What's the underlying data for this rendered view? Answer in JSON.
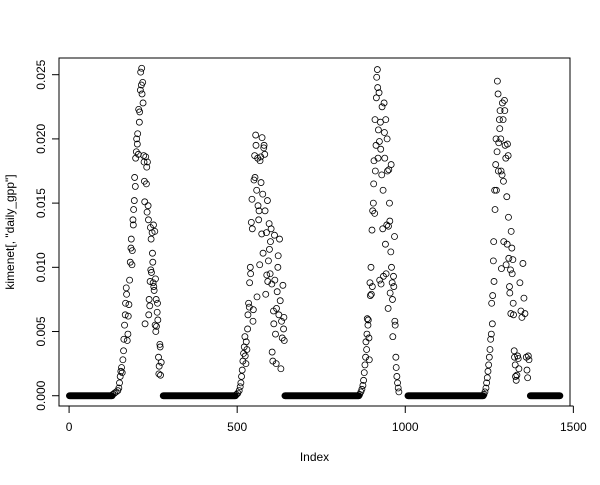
{
  "chart_data": {
    "type": "scatter",
    "title": "",
    "xlabel": "Index",
    "ylabel": "kimenet[, \"daily_gpp\"]",
    "xlim": [
      -30,
      1490
    ],
    "ylim": [
      -0.0008,
      0.0263
    ],
    "xticks": [
      0,
      500,
      1000,
      1500
    ],
    "xtick_labels": [
      "0",
      "500",
      "1000",
      "1500"
    ],
    "yticks": [
      0,
      0.005,
      0.01,
      0.015,
      0.02,
      0.025
    ],
    "ytick_labels": [
      "0.000",
      "0.005",
      "0.010",
      "0.015",
      "0.020",
      "0.025"
    ],
    "grid": false,
    "marker": "open-circle",
    "marker_color": "#000000",
    "zero_ranges": [
      [
        1,
        128
      ],
      [
        280,
        495
      ],
      [
        642,
        862
      ],
      [
        1008,
        1232
      ],
      [
        1372,
        1460
      ]
    ],
    "points": [
      [
        130,
        0.0001
      ],
      [
        135,
        0.0002
      ],
      [
        140,
        0.0003
      ],
      [
        145,
        0.0004
      ],
      [
        148,
        0.0006
      ],
      [
        150,
        0.001
      ],
      [
        152,
        0.0015
      ],
      [
        154,
        0.0019
      ],
      [
        156,
        0.0022
      ],
      [
        158,
        0.0018
      ],
      [
        160,
        0.0028
      ],
      [
        162,
        0.0035
      ],
      [
        163,
        0.0044
      ],
      [
        165,
        0.0055
      ],
      [
        167,
        0.0063
      ],
      [
        168,
        0.0072
      ],
      [
        170,
        0.0084
      ],
      [
        171,
        0.0079
      ],
      [
        173,
        0.0043
      ],
      [
        175,
        0.0048
      ],
      [
        176,
        0.0062
      ],
      [
        178,
        0.0071
      ],
      [
        180,
        0.009
      ],
      [
        182,
        0.0104
      ],
      [
        184,
        0.0115
      ],
      [
        185,
        0.0122
      ],
      [
        187,
        0.0102
      ],
      [
        188,
        0.0113
      ],
      [
        190,
        0.0137
      ],
      [
        191,
        0.0133
      ],
      [
        192,
        0.0145
      ],
      [
        194,
        0.0152
      ],
      [
        195,
        0.017
      ],
      [
        197,
        0.0163
      ],
      [
        198,
        0.0185
      ],
      [
        200,
        0.019
      ],
      [
        201,
        0.02
      ],
      [
        203,
        0.0196
      ],
      [
        204,
        0.0204
      ],
      [
        206,
        0.0188
      ],
      [
        207,
        0.0223
      ],
      [
        209,
        0.0213
      ],
      [
        210,
        0.0221
      ],
      [
        212,
        0.0238
      ],
      [
        213,
        0.0252
      ],
      [
        215,
        0.0242
      ],
      [
        216,
        0.0255
      ],
      [
        217,
        0.0235
      ],
      [
        219,
        0.0244
      ],
      [
        220,
        0.0228
      ],
      [
        222,
        0.0187
      ],
      [
        223,
        0.0182
      ],
      [
        224,
        0.0167
      ],
      [
        225,
        0.0151
      ],
      [
        226,
        0.0056
      ],
      [
        228,
        0.0186
      ],
      [
        230,
        0.0165
      ],
      [
        231,
        0.0178
      ],
      [
        232,
        0.0143
      ],
      [
        233,
        0.0182
      ],
      [
        235,
        0.0148
      ],
      [
        236,
        0.0137
      ],
      [
        237,
        0.0063
      ],
      [
        238,
        0.0075
      ],
      [
        240,
        0.007
      ],
      [
        241,
        0.0089
      ],
      [
        242,
        0.0131
      ],
      [
        243,
        0.0098
      ],
      [
        244,
        0.0122
      ],
      [
        245,
        0.0096
      ],
      [
        247,
        0.0127
      ],
      [
        248,
        0.0111
      ],
      [
        249,
        0.0104
      ],
      [
        250,
        0.0088
      ],
      [
        251,
        0.0133
      ],
      [
        252,
        0.0085
      ],
      [
        253,
        0.0082
      ],
      [
        255,
        0.0128
      ],
      [
        256,
        0.0055
      ],
      [
        257,
        0.0091
      ],
      [
        258,
        0.005
      ],
      [
        259,
        0.0075
      ],
      [
        260,
        0.0054
      ],
      [
        262,
        0.0065
      ],
      [
        263,
        0.0072
      ],
      [
        264,
        0.0059
      ],
      [
        266,
        0.003
      ],
      [
        267,
        0.0017
      ],
      [
        268,
        0.0023
      ],
      [
        270,
        0.004
      ],
      [
        271,
        0.0038
      ],
      [
        272,
        0.0016
      ],
      [
        274,
        0.0026
      ],
      [
        498,
        0.0001
      ],
      [
        502,
        0.0002
      ],
      [
        506,
        0.0004
      ],
      [
        509,
        0.0007
      ],
      [
        511,
        0.001
      ],
      [
        513,
        0.0015
      ],
      [
        515,
        0.002
      ],
      [
        517,
        0.0027
      ],
      [
        519,
        0.0033
      ],
      [
        521,
        0.0038
      ],
      [
        523,
        0.0046
      ],
      [
        524,
        0.0031
      ],
      [
        526,
        0.0025
      ],
      [
        527,
        0.0042
      ],
      [
        529,
        0.0036
      ],
      [
        531,
        0.0052
      ],
      [
        532,
        0.0063
      ],
      [
        534,
        0.0072
      ],
      [
        536,
        0.0069
      ],
      [
        537,
        0.0088
      ],
      [
        539,
        0.01
      ],
      [
        540,
        0.0095
      ],
      [
        542,
        0.0135
      ],
      [
        544,
        0.0153
      ],
      [
        545,
        0.013
      ],
      [
        547,
        0.0058
      ],
      [
        548,
        0.0067
      ],
      [
        550,
        0.0168
      ],
      [
        552,
        0.0187
      ],
      [
        553,
        0.017
      ],
      [
        555,
        0.0203
      ],
      [
        556,
        0.0195
      ],
      [
        558,
        0.016
      ],
      [
        559,
        0.0077
      ],
      [
        561,
        0.0185
      ],
      [
        562,
        0.0148
      ],
      [
        564,
        0.0137
      ],
      [
        565,
        0.0144
      ],
      [
        567,
        0.0102
      ],
      [
        568,
        0.0183
      ],
      [
        570,
        0.0186
      ],
      [
        571,
        0.0166
      ],
      [
        573,
        0.0126
      ],
      [
        574,
        0.0201
      ],
      [
        576,
        0.0157
      ],
      [
        577,
        0.0111
      ],
      [
        579,
        0.0193
      ],
      [
        580,
        0.0195
      ],
      [
        582,
        0.0188
      ],
      [
        583,
        0.0144
      ],
      [
        585,
        0.0079
      ],
      [
        587,
        0.0127
      ],
      [
        588,
        0.0094
      ],
      [
        590,
        0.0152
      ],
      [
        591,
        0.0089
      ],
      [
        593,
        0.0105
      ],
      [
        595,
        0.0134
      ],
      [
        596,
        0.0114
      ],
      [
        598,
        0.0095
      ],
      [
        599,
        0.012
      ],
      [
        601,
        0.013
      ],
      [
        603,
        0.0087
      ],
      [
        604,
        0.0034
      ],
      [
        606,
        0.0027
      ],
      [
        608,
        0.0066
      ],
      [
        609,
        0.0056
      ],
      [
        611,
        0.0125
      ],
      [
        612,
        0.009
      ],
      [
        614,
        0.0048
      ],
      [
        616,
        0.0025
      ],
      [
        617,
        0.0068
      ],
      [
        619,
        0.0081
      ],
      [
        621,
        0.01
      ],
      [
        622,
        0.0109
      ],
      [
        624,
        0.0063
      ],
      [
        626,
        0.0122
      ],
      [
        628,
        0.0074
      ],
      [
        630,
        0.0021
      ],
      [
        632,
        0.0058
      ],
      [
        634,
        0.0045
      ],
      [
        636,
        0.0086
      ],
      [
        638,
        0.0052
      ],
      [
        639,
        0.0061
      ],
      [
        640,
        0.0043
      ],
      [
        864,
        0.0001
      ],
      [
        868,
        0.0003
      ],
      [
        871,
        0.0005
      ],
      [
        874,
        0.0008
      ],
      [
        876,
        0.0012
      ],
      [
        878,
        0.0018
      ],
      [
        880,
        0.0024
      ],
      [
        882,
        0.003
      ],
      [
        883,
        0.0042
      ],
      [
        885,
        0.0036
      ],
      [
        886,
        0.0048
      ],
      [
        887,
        0.006
      ],
      [
        889,
        0.0055
      ],
      [
        890,
        0.0059
      ],
      [
        892,
        0.0045
      ],
      [
        893,
        0.0028
      ],
      [
        895,
        0.0088
      ],
      [
        896,
        0.0078
      ],
      [
        898,
        0.01
      ],
      [
        899,
        0.0079
      ],
      [
        901,
        0.0129
      ],
      [
        902,
        0.0085
      ],
      [
        903,
        0.0144
      ],
      [
        905,
        0.015
      ],
      [
        906,
        0.0165
      ],
      [
        907,
        0.0183
      ],
      [
        909,
        0.0142
      ],
      [
        910,
        0.0215
      ],
      [
        911,
        0.0175
      ],
      [
        913,
        0.0195
      ],
      [
        914,
        0.0232
      ],
      [
        915,
        0.0248
      ],
      [
        917,
        0.0254
      ],
      [
        918,
        0.024
      ],
      [
        919,
        0.0185
      ],
      [
        920,
        0.0207
      ],
      [
        922,
        0.0236
      ],
      [
        923,
        0.0198
      ],
      [
        924,
        0.009
      ],
      [
        926,
        0.0213
      ],
      [
        927,
        0.0192
      ],
      [
        928,
        0.0087
      ],
      [
        930,
        0.0172
      ],
      [
        931,
        0.0225
      ],
      [
        933,
        0.013
      ],
      [
        934,
        0.016
      ],
      [
        935,
        0.0093
      ],
      [
        937,
        0.0228
      ],
      [
        938,
        0.0205
      ],
      [
        939,
        0.0185
      ],
      [
        941,
        0.0118
      ],
      [
        942,
        0.0215
      ],
      [
        943,
        0.0095
      ],
      [
        945,
        0.0133
      ],
      [
        946,
        0.02
      ],
      [
        947,
        0.0175
      ],
      [
        949,
        0.0068
      ],
      [
        950,
        0.0132
      ],
      [
        951,
        0.0176
      ],
      [
        953,
        0.015
      ],
      [
        954,
        0.0136
      ],
      [
        955,
        0.008
      ],
      [
        957,
        0.0112
      ],
      [
        958,
        0.018
      ],
      [
        959,
        0.01
      ],
      [
        961,
        0.0088
      ],
      [
        962,
        0.0075
      ],
      [
        963,
        0.0046
      ],
      [
        965,
        0.0093
      ],
      [
        966,
        0.0085
      ],
      [
        968,
        0.0124
      ],
      [
        969,
        0.0058
      ],
      [
        970,
        0.0055
      ],
      [
        972,
        0.003
      ],
      [
        973,
        0.0022
      ],
      [
        975,
        0.0015
      ],
      [
        977,
        0.001
      ],
      [
        979,
        0.0006
      ],
      [
        981,
        0.0003
      ],
      [
        1234,
        0.0001
      ],
      [
        1237,
        0.0003
      ],
      [
        1240,
        0.0006
      ],
      [
        1242,
        0.001
      ],
      [
        1244,
        0.0014
      ],
      [
        1246,
        0.0019
      ],
      [
        1248,
        0.0024
      ],
      [
        1250,
        0.003
      ],
      [
        1252,
        0.0036
      ],
      [
        1254,
        0.0044
      ],
      [
        1256,
        0.0048
      ],
      [
        1257,
        0.0072
      ],
      [
        1259,
        0.0056
      ],
      [
        1260,
        0.0078
      ],
      [
        1262,
        0.0105
      ],
      [
        1263,
        0.012
      ],
      [
        1264,
        0.0089
      ],
      [
        1266,
        0.016
      ],
      [
        1267,
        0.0145
      ],
      [
        1269,
        0.018
      ],
      [
        1270,
        0.02
      ],
      [
        1271,
        0.016
      ],
      [
        1273,
        0.019
      ],
      [
        1274,
        0.0245
      ],
      [
        1276,
        0.0235
      ],
      [
        1277,
        0.0175
      ],
      [
        1278,
        0.0197
      ],
      [
        1280,
        0.0215
      ],
      [
        1281,
        0.0208
      ],
      [
        1282,
        0.0222
      ],
      [
        1284,
        0.02
      ],
      [
        1285,
        0.0175
      ],
      [
        1286,
        0.0099
      ],
      [
        1288,
        0.0172
      ],
      [
        1289,
        0.0228
      ],
      [
        1291,
        0.0215
      ],
      [
        1292,
        0.0167
      ],
      [
        1293,
        0.012
      ],
      [
        1295,
        0.023
      ],
      [
        1296,
        0.0222
      ],
      [
        1297,
        0.0195
      ],
      [
        1299,
        0.0185
      ],
      [
        1300,
        0.0102
      ],
      [
        1302,
        0.0155
      ],
      [
        1303,
        0.0118
      ],
      [
        1304,
        0.0196
      ],
      [
        1306,
        0.0187
      ],
      [
        1307,
        0.0139
      ],
      [
        1308,
        0.0107
      ],
      [
        1310,
        0.0085
      ],
      [
        1311,
        0.008
      ],
      [
        1313,
        0.0098
      ],
      [
        1314,
        0.0064
      ],
      [
        1315,
        0.0128
      ],
      [
        1317,
        0.0115
      ],
      [
        1318,
        0.0095
      ],
      [
        1320,
        0.0106
      ],
      [
        1321,
        0.0072
      ],
      [
        1322,
        0.0063
      ],
      [
        1324,
        0.0035
      ],
      [
        1325,
        0.003
      ],
      [
        1327,
        0.0024
      ],
      [
        1328,
        0.0015
      ],
      [
        1330,
        0.0012
      ],
      [
        1332,
        0.0016
      ],
      [
        1334,
        0.0031
      ],
      [
        1336,
        0.0029
      ],
      [
        1338,
        0.0021
      ],
      [
        1341,
        0.0088
      ],
      [
        1344,
        0.0066
      ],
      [
        1347,
        0.0061
      ],
      [
        1350,
        0.0103
      ],
      [
        1353,
        0.0076
      ],
      [
        1356,
        0.0064
      ],
      [
        1360,
        0.003
      ],
      [
        1362,
        0.002
      ],
      [
        1364,
        0.0014
      ],
      [
        1366,
        0.0031
      ],
      [
        1368,
        0.0028
      ]
    ]
  }
}
